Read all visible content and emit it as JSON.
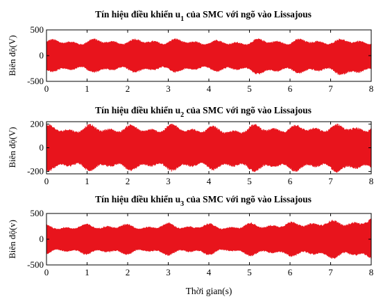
{
  "chart_data": [
    {
      "type": "line",
      "title_main": "Tín hiệu điều khiển u",
      "title_sub": "1",
      "title_rest": " của SMC với ngõ vào Lissajous",
      "ylabel": "Biên độ(V)",
      "xlabel": "",
      "xlim": [
        0,
        8
      ],
      "ylim": [
        -500,
        500
      ],
      "xticks": [
        0,
        1,
        2,
        3,
        4,
        5,
        6,
        7,
        8
      ],
      "yticks": [
        -500,
        0,
        500
      ],
      "ytick_labels": [
        "-500",
        "0",
        "500"
      ],
      "grid": false,
      "series": [
        {
          "color": "#e8141c",
          "x": [
            0,
            0.5,
            1.0,
            1.5,
            2.0,
            2.5,
            3.0,
            3.5,
            4.0,
            4.5,
            5.0,
            5.5,
            6.0,
            6.5,
            7.0,
            7.5,
            8.0
          ],
          "upper": [
            330,
            320,
            340,
            330,
            340,
            330,
            350,
            320,
            330,
            290,
            340,
            330,
            340,
            330,
            340,
            330,
            340
          ],
          "lower": [
            -330,
            -320,
            -340,
            -330,
            -340,
            -330,
            -340,
            -320,
            -330,
            -300,
            -380,
            -360,
            -370,
            -340,
            -380,
            -400,
            -380
          ]
        }
      ]
    },
    {
      "type": "line",
      "title_main": "Tín hiệu điều khiển u",
      "title_sub": "2",
      "title_rest": " của SMC với ngõ vào Lissajous",
      "ylabel": "Biên độ(V)",
      "xlabel": "",
      "xlim": [
        0,
        8
      ],
      "ylim": [
        -220,
        220
      ],
      "xticks": [
        0,
        1,
        2,
        3,
        4,
        5,
        6,
        7,
        8
      ],
      "yticks": [
        -200,
        0,
        200
      ],
      "ytick_labels": [
        "-200",
        "0",
        "200"
      ],
      "grid": false,
      "series": [
        {
          "color": "#e8141c",
          "x": [
            0,
            0.5,
            1.0,
            1.5,
            2.0,
            2.5,
            3.0,
            3.5,
            4.0,
            4.5,
            5.0,
            5.5,
            6.0,
            6.5,
            7.0,
            7.5,
            8.0
          ],
          "upper": [
            200,
            190,
            200,
            195,
            200,
            190,
            205,
            195,
            190,
            170,
            200,
            200,
            195,
            205,
            200,
            210,
            200
          ],
          "lower": [
            -200,
            -190,
            -200,
            -195,
            -200,
            -190,
            -200,
            -195,
            -190,
            -190,
            -205,
            -200,
            -205,
            -195,
            -205,
            -215,
            -210
          ]
        }
      ]
    },
    {
      "type": "line",
      "title_main": "Tín hiệu điều khiển u",
      "title_sub": "3",
      "title_rest": " của SMC với ngõ vào Lissajous",
      "ylabel": "Biên độ(v)",
      "xlabel": "Thời gian(s)",
      "xlim": [
        0,
        8
      ],
      "ylim": [
        -500,
        500
      ],
      "xticks": [
        0,
        1,
        2,
        3,
        4,
        5,
        6,
        7,
        8
      ],
      "yticks": [
        -500,
        0,
        500
      ],
      "ytick_labels": [
        "-500",
        "0",
        "500"
      ],
      "grid": false,
      "series": [
        {
          "color": "#e8141c",
          "x": [
            0,
            0.5,
            1.0,
            1.5,
            2.0,
            2.5,
            3.0,
            3.5,
            4.0,
            4.5,
            5.0,
            5.5,
            6.0,
            6.5,
            7.0,
            7.5,
            8.0
          ],
          "upper": [
            300,
            280,
            300,
            310,
            300,
            290,
            320,
            300,
            310,
            280,
            320,
            330,
            340,
            380,
            370,
            400,
            420
          ],
          "lower": [
            -300,
            -290,
            -300,
            -310,
            -300,
            -290,
            -320,
            -300,
            -310,
            -280,
            -330,
            -330,
            -340,
            -360,
            -380,
            -380,
            -400
          ]
        }
      ]
    }
  ]
}
